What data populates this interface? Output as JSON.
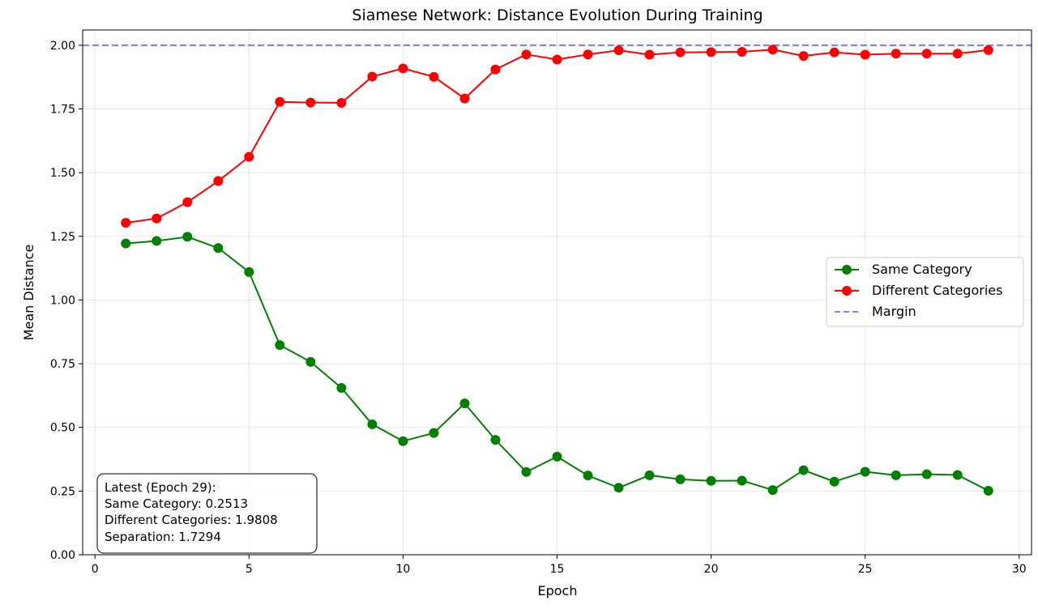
{
  "chart_data": {
    "type": "line",
    "title": "Siamese Network: Distance Evolution During Training",
    "xlabel": "Epoch",
    "ylabel": "Mean Distance",
    "xlim": [
      -0.4,
      30.4
    ],
    "ylim": [
      0,
      2.06
    ],
    "xticks": [
      0,
      5,
      10,
      15,
      20,
      25,
      30
    ],
    "yticks": [
      0.0,
      0.25,
      0.5,
      0.75,
      1.0,
      1.25,
      1.5,
      1.75,
      2.0
    ],
    "x_tick_labels": [
      "0",
      "5",
      "10",
      "15",
      "20",
      "25",
      "30"
    ],
    "y_tick_labels": [
      "0.00",
      "0.25",
      "0.50",
      "0.75",
      "1.00",
      "1.25",
      "1.50",
      "1.75",
      "2.00"
    ],
    "grid": true,
    "legend_position": "center-right",
    "x": [
      1,
      2,
      3,
      4,
      5,
      6,
      7,
      8,
      9,
      10,
      11,
      12,
      13,
      14,
      15,
      16,
      17,
      18,
      19,
      20,
      21,
      22,
      23,
      24,
      25,
      26,
      27,
      28,
      29
    ],
    "series": [
      {
        "name": "Same Category",
        "color": "#008000",
        "marker": "circle",
        "values": [
          1.222,
          1.232,
          1.248,
          1.204,
          1.11,
          0.823,
          0.757,
          0.655,
          0.512,
          0.446,
          0.478,
          0.594,
          0.451,
          0.325,
          0.385,
          0.311,
          0.263,
          0.312,
          0.296,
          0.29,
          0.291,
          0.254,
          0.332,
          0.287,
          0.326,
          0.312,
          0.316,
          0.313,
          0.2513
        ]
      },
      {
        "name": "Different Categories",
        "color": "#ff0000",
        "marker": "circle",
        "values": [
          1.303,
          1.32,
          1.384,
          1.467,
          1.562,
          1.778,
          1.775,
          1.774,
          1.877,
          1.909,
          1.876,
          1.791,
          1.905,
          1.964,
          1.944,
          1.964,
          1.98,
          1.963,
          1.972,
          1.973,
          1.974,
          1.983,
          1.958,
          1.972,
          1.963,
          1.967,
          1.967,
          1.967,
          1.9808
        ]
      }
    ],
    "reference_lines": [
      {
        "name": "Margin",
        "y": 2.0,
        "color": "#0000ff",
        "style": "dashed"
      }
    ],
    "annotation": {
      "lines": [
        "Latest (Epoch 29):",
        "Same Category: 0.2513",
        "Different Categories: 1.9808",
        "Separation: 1.7294"
      ],
      "position": "bottom-left"
    }
  }
}
